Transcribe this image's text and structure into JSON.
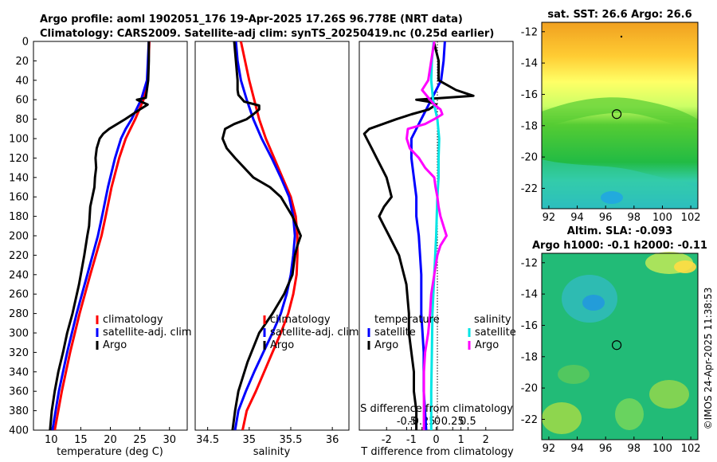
{
  "header": {
    "line1": "Argo profile: aoml 1902051_176 19-Apr-2025 17.26S 96.778E (NRT data)",
    "line2": "Climatology: CARS2009. Satellite-adj clim: synTS_20250419.nc (0.25d earlier)"
  },
  "colors": {
    "clim": "#ff0000",
    "sat": "#0000ff",
    "argo": "#000000",
    "sal_sat": "#00e5e5",
    "sal_argo": "#ff00ff"
  },
  "chart_data": [
    {
      "type": "line",
      "id": "temperature",
      "xlabel": "temperature (deg C)",
      "ylabel": "",
      "xlim": [
        7,
        33
      ],
      "ylim": [
        400,
        0
      ],
      "xticks": [
        "10",
        "15",
        "20",
        "25",
        "30"
      ],
      "xtick_values": [
        10,
        15,
        20,
        25,
        30
      ],
      "yticks": [
        "0",
        "20",
        "40",
        "60",
        "80",
        "100",
        "120",
        "140",
        "160",
        "180",
        "200",
        "220",
        "240",
        "260",
        "280",
        "300",
        "320",
        "340",
        "360",
        "380",
        "400"
      ],
      "legend": [
        "climatology",
        "satellite-adj. clim",
        "Argo"
      ],
      "series": [
        {
          "name": "climatology",
          "color": "#ff0000",
          "depth": [
            0,
            40,
            60,
            80,
            90,
            100,
            120,
            150,
            180,
            200,
            240,
            280,
            320,
            360,
            400
          ],
          "values": [
            26.6,
            26.3,
            25.6,
            24.2,
            23.4,
            22.6,
            21.5,
            20.2,
            19.2,
            18.5,
            16.6,
            14.8,
            13.2,
            11.8,
            10.6
          ]
        },
        {
          "name": "satellite-adj. clim",
          "color": "#0000ff",
          "depth": [
            0,
            40,
            60,
            80,
            90,
            100,
            120,
            150,
            180,
            200,
            240,
            280,
            320,
            360,
            400
          ],
          "values": [
            26.5,
            26.2,
            25.2,
            23.6,
            22.6,
            21.8,
            20.8,
            19.6,
            18.6,
            17.9,
            16.1,
            14.3,
            12.7,
            11.3,
            10.2
          ]
        },
        {
          "name": "Argo",
          "color": "#000000",
          "depth": [
            0,
            20,
            40,
            58,
            60,
            62,
            65,
            70,
            80,
            90,
            95,
            100,
            110,
            120,
            130,
            140,
            150,
            170,
            190,
            200,
            220,
            250,
            280,
            300,
            320,
            340,
            360,
            380,
            400
          ],
          "values": [
            26.5,
            26.5,
            26.4,
            26.0,
            24.5,
            25.2,
            26.3,
            25.0,
            22.5,
            19.8,
            18.8,
            18.2,
            17.7,
            17.5,
            17.6,
            17.4,
            17.3,
            16.6,
            16.4,
            16.1,
            15.6,
            14.7,
            13.6,
            12.7,
            12.0,
            11.2,
            10.6,
            10.1,
            9.8
          ]
        }
      ]
    },
    {
      "type": "line",
      "id": "salinity",
      "xlabel": "salinity",
      "ylabel": "",
      "xlim": [
        34.35,
        36.2
      ],
      "ylim": [
        400,
        0
      ],
      "xticks": [
        "34.5",
        "35",
        "35.5",
        "36"
      ],
      "xtick_values": [
        34.5,
        35,
        35.5,
        36
      ],
      "legend": [
        "climatology",
        "satellite-adj. clim",
        "Argo"
      ],
      "series": [
        {
          "name": "climatology",
          "color": "#ff0000",
          "depth": [
            0,
            20,
            40,
            60,
            80,
            100,
            120,
            140,
            160,
            180,
            200,
            220,
            240,
            260,
            280,
            300,
            320,
            340,
            360,
            380,
            400
          ],
          "values": [
            34.9,
            34.95,
            35.0,
            35.06,
            35.12,
            35.2,
            35.3,
            35.4,
            35.5,
            35.56,
            35.58,
            35.58,
            35.57,
            35.53,
            35.47,
            35.38,
            35.28,
            35.18,
            35.08,
            34.97,
            34.92
          ]
        },
        {
          "name": "satellite-adj. clim",
          "color": "#0000ff",
          "depth": [
            0,
            20,
            40,
            60,
            80,
            100,
            120,
            140,
            160,
            180,
            200,
            220,
            240,
            260,
            280,
            300,
            320,
            340,
            360,
            380,
            400
          ],
          "values": [
            34.84,
            34.86,
            34.9,
            34.97,
            35.05,
            35.15,
            35.27,
            35.38,
            35.48,
            35.53,
            35.55,
            35.53,
            35.5,
            35.45,
            35.38,
            35.28,
            35.17,
            35.06,
            34.96,
            34.87,
            34.83
          ]
        },
        {
          "name": "Argo",
          "color": "#000000",
          "depth": [
            0,
            20,
            40,
            50,
            55,
            62,
            66,
            70,
            75,
            80,
            85,
            90,
            100,
            110,
            120,
            140,
            150,
            160,
            180,
            200,
            210,
            220,
            240,
            260,
            280,
            300,
            330,
            360,
            380,
            400
          ],
          "values": [
            34.82,
            34.84,
            34.86,
            34.86,
            34.87,
            34.94,
            35.12,
            35.12,
            35.05,
            34.97,
            34.82,
            34.71,
            34.68,
            34.73,
            34.83,
            35.05,
            35.25,
            35.38,
            35.52,
            35.62,
            35.58,
            35.55,
            35.52,
            35.42,
            35.28,
            35.12,
            34.98,
            34.87,
            34.83,
            34.8
          ]
        }
      ]
    },
    {
      "type": "line",
      "id": "difference",
      "xlabel": "T difference from climatology",
      "x2label": "S difference from climatology",
      "xlim": [
        -3.1,
        3.1
      ],
      "ylim": [
        400,
        0
      ],
      "xticks": [
        "-2",
        "-1",
        "0",
        "1",
        "2"
      ],
      "xtick_values": [
        -2,
        -1,
        0,
        1,
        2
      ],
      "x2ticks": [
        "-0.5",
        "-0.25",
        "0",
        "0.25",
        "0.5"
      ],
      "x2tick_values": [
        -0.5,
        -0.25,
        0,
        0.25,
        0.5
      ],
      "legend_t": {
        "title": "temperature",
        "items": [
          "satellite",
          "Argo"
        ]
      },
      "legend_s": {
        "title": "salinity",
        "items": [
          "satellite",
          "Argo"
        ]
      },
      "series": [
        {
          "name": "temperature satellite",
          "color": "#0000ff",
          "depth": [
            0,
            20,
            40,
            60,
            80,
            100,
            120,
            140,
            160,
            180,
            200,
            240,
            280,
            320,
            360,
            400
          ],
          "values": [
            0.35,
            0.3,
            0.2,
            -0.2,
            -0.6,
            -1.0,
            -1.0,
            -0.9,
            -0.8,
            -0.8,
            -0.7,
            -0.6,
            -0.6,
            -0.5,
            -0.5,
            -0.4
          ]
        },
        {
          "name": "temperature Argo",
          "color": "#000000",
          "depth": [
            0,
            20,
            40,
            50,
            56,
            60,
            62,
            65,
            70,
            75,
            80,
            90,
            95,
            100,
            110,
            120,
            130,
            140,
            150,
            160,
            170,
            180,
            190,
            200,
            220,
            250,
            280,
            300,
            320,
            340,
            360,
            380,
            400
          ],
          "values": [
            -0.1,
            0.1,
            0.1,
            0.8,
            1.5,
            -0.8,
            -0.3,
            0.0,
            -0.3,
            -1.0,
            -1.6,
            -2.7,
            -2.9,
            -2.8,
            -2.6,
            -2.4,
            -2.2,
            -2.0,
            -1.9,
            -1.8,
            -2.1,
            -2.3,
            -2.1,
            -1.9,
            -1.5,
            -1.2,
            -1.1,
            -1.1,
            -1.0,
            -0.9,
            -0.9,
            -0.8,
            -0.8
          ]
        },
        {
          "name": "salinity satellite",
          "color": "#00e5e5",
          "depth": [
            0,
            20,
            40,
            60,
            80,
            100,
            120,
            140,
            160,
            180,
            200,
            240,
            280,
            320,
            360,
            400
          ],
          "values": [
            -0.06,
            -0.09,
            -0.1,
            -0.07,
            0.0,
            0.03,
            0.02,
            0.02,
            0.0,
            -0.01,
            -0.02,
            -0.05,
            -0.08,
            -0.09,
            -0.1,
            -0.1
          ]
        },
        {
          "name": "salinity Argo",
          "color": "#ff00ff",
          "depth": [
            0,
            20,
            40,
            50,
            60,
            65,
            70,
            75,
            80,
            85,
            90,
            100,
            110,
            120,
            130,
            140,
            150,
            160,
            170,
            180,
            190,
            200,
            210,
            220,
            240,
            260,
            280,
            300,
            320,
            340,
            360,
            380,
            400
          ],
          "values": [
            -0.05,
            -0.1,
            -0.15,
            -0.25,
            -0.12,
            -0.05,
            0.05,
            0.08,
            -0.05,
            -0.2,
            -0.48,
            -0.5,
            -0.45,
            -0.3,
            -0.2,
            -0.05,
            -0.03,
            0.0,
            0.02,
            0.05,
            0.1,
            0.15,
            0.05,
            0.0,
            -0.05,
            -0.1,
            -0.12,
            -0.15,
            -0.2,
            -0.22,
            -0.22,
            -0.22,
            -0.22
          ]
        }
      ]
    },
    {
      "type": "heatmap",
      "id": "sst_map",
      "title": "sat. SST: 26.6 Argo: 26.6",
      "xticks": [
        "92",
        "94",
        "96",
        "98",
        "100",
        "102"
      ],
      "xtick_values": [
        92,
        94,
        96,
        98,
        100,
        102
      ],
      "yticks": [
        "-12",
        "-14",
        "-16",
        "-18",
        "-20",
        "-22"
      ],
      "ytick_values": [
        -12,
        -14,
        -16,
        -18,
        -20,
        -22
      ],
      "xlim": [
        91.5,
        102.5
      ],
      "ylim": [
        -23.3,
        -11.4
      ],
      "marker": {
        "lon": 96.78,
        "lat": -17.26
      }
    },
    {
      "type": "heatmap",
      "id": "sla_map",
      "title": "Altim. SLA: -0.093",
      "subtitle": "Argo h1000: -0.1 h2000: -0.11",
      "xticks": [
        "92",
        "94",
        "96",
        "98",
        "100",
        "102"
      ],
      "xtick_values": [
        92,
        94,
        96,
        98,
        100,
        102
      ],
      "yticks": [
        "-12",
        "-14",
        "-16",
        "-18",
        "-20",
        "-22"
      ],
      "ytick_values": [
        -12,
        -14,
        -16,
        -18,
        -20,
        -22
      ],
      "xlim": [
        91.5,
        102.5
      ],
      "ylim": [
        -23.3,
        -11.4
      ],
      "marker": {
        "lon": 96.78,
        "lat": -17.26
      }
    }
  ],
  "credit": "©IMOS 24-Apr-2025 11:38:53"
}
